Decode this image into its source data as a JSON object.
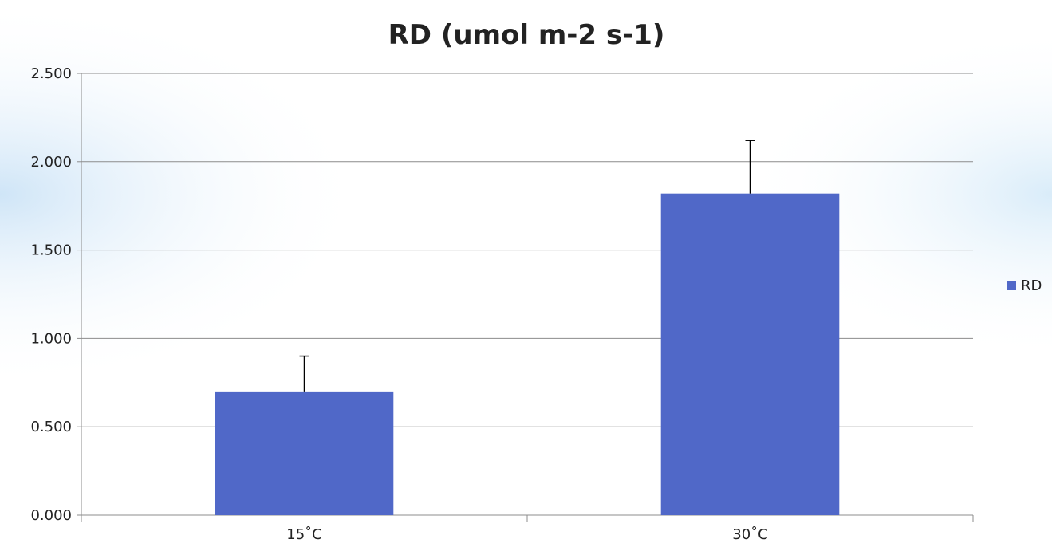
{
  "colors": {
    "bar": "#5068C8",
    "grid": "#8C8C8C",
    "error_bar": "#000000",
    "background_accent": "#D6EAF8"
  },
  "chart_data": {
    "type": "bar",
    "title": "RD (umol m-2 s-1)",
    "categories": [
      "15˚C",
      "30˚C"
    ],
    "series": [
      {
        "name": "RD",
        "values": [
          0.7,
          1.82
        ],
        "error": [
          0.2,
          0.3
        ]
      }
    ],
    "ylim": [
      0,
      2.5
    ],
    "yticks": [
      "0.000",
      "0.500",
      "1.000",
      "1.500",
      "2.000",
      "2.500"
    ],
    "grid": true,
    "legend_position": "right"
  }
}
